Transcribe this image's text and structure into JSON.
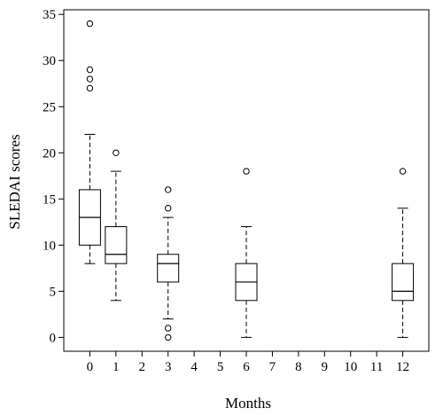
{
  "chart_data": {
    "type": "boxplot",
    "xlabel": "Months",
    "ylabel": "SLEDAI scores",
    "x_ticks": [
      0,
      1,
      2,
      3,
      4,
      5,
      6,
      7,
      8,
      9,
      10,
      11,
      12
    ],
    "xlim": [
      -1,
      13
    ],
    "ylim": [
      -1.5,
      35.5
    ],
    "y_ticks": [
      0,
      5,
      10,
      15,
      20,
      25,
      30,
      35
    ],
    "grid": false,
    "boxes": [
      {
        "x": 0,
        "whisker_low": 8,
        "q1": 10,
        "median": 13,
        "q3": 16,
        "whisker_high": 22,
        "outliers": [
          27,
          28,
          29,
          34
        ]
      },
      {
        "x": 1,
        "whisker_low": 4,
        "q1": 8,
        "median": 9,
        "q3": 12,
        "whisker_high": 18,
        "outliers": [
          20
        ]
      },
      {
        "x": 3,
        "whisker_low": 2,
        "q1": 6,
        "median": 8,
        "q3": 9,
        "whisker_high": 13,
        "outliers": [
          0,
          1,
          14,
          16
        ]
      },
      {
        "x": 6,
        "whisker_low": 0,
        "q1": 4,
        "median": 6,
        "q3": 8,
        "whisker_high": 12,
        "outliers": [
          18
        ]
      },
      {
        "x": 12,
        "whisker_low": 0,
        "q1": 4,
        "median": 5,
        "q3": 8,
        "whisker_high": 14,
        "outliers": [
          18
        ]
      }
    ]
  }
}
